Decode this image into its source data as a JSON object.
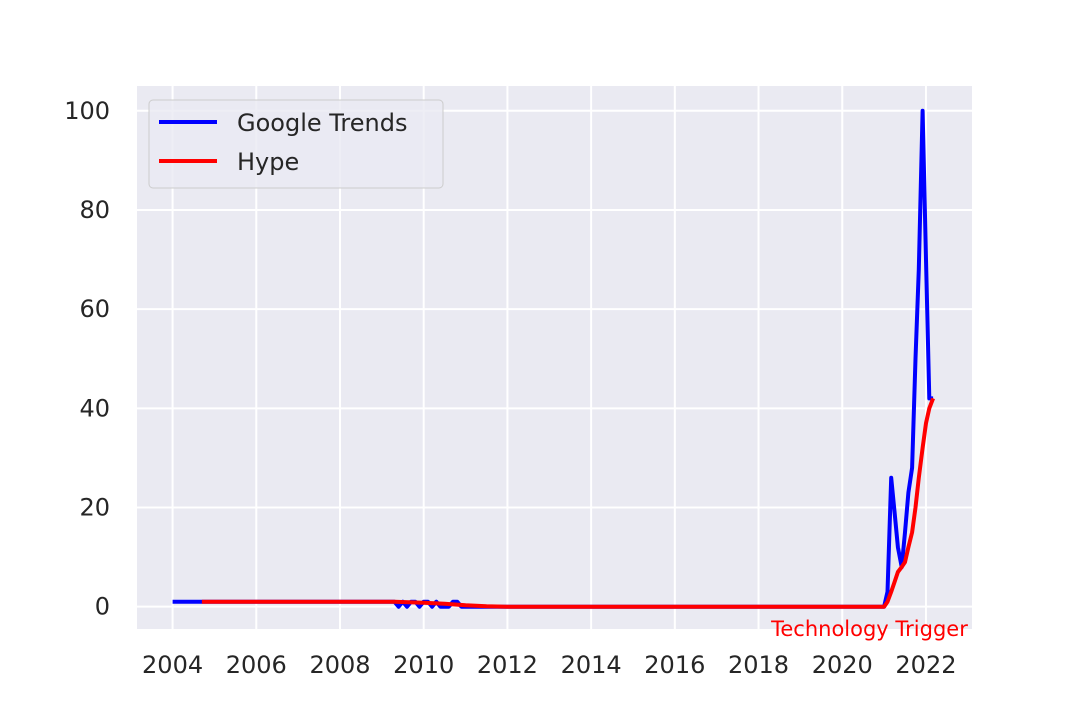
{
  "chart_data": {
    "type": "line",
    "title": "",
    "xlabel": "",
    "ylabel": "",
    "xlim": [
      2003.15,
      2023.1
    ],
    "ylim": [
      -4.5,
      105
    ],
    "grid": true,
    "legend_position": "top-left",
    "x_ticks": [
      2004,
      2006,
      2008,
      2010,
      2012,
      2014,
      2016,
      2018,
      2020,
      2022
    ],
    "y_ticks": [
      0,
      20,
      40,
      60,
      80,
      100
    ],
    "series": [
      {
        "name": "Google Trends",
        "color": "#0000ff",
        "x": [
          2004.0,
          2004.7,
          2009.3,
          2009.4,
          2009.5,
          2009.6,
          2009.7,
          2009.8,
          2009.9,
          2010.0,
          2010.1,
          2010.2,
          2010.3,
          2010.4,
          2010.5,
          2010.6,
          2010.7,
          2010.8,
          2010.9,
          2011.0,
          2012.0,
          2020.9,
          2021.0,
          2021.08,
          2021.17,
          2021.25,
          2021.33,
          2021.42,
          2021.5,
          2021.58,
          2021.67,
          2021.75,
          2021.83,
          2021.92,
          2022.0,
          2022.08,
          2022.17
        ],
        "y": [
          1,
          1,
          1,
          0,
          1,
          0,
          1,
          1,
          0,
          1,
          1,
          0,
          1,
          0,
          0,
          0,
          1,
          1,
          0,
          0,
          0,
          0,
          0,
          3,
          26,
          19,
          12,
          8,
          15,
          23,
          28,
          50,
          68,
          100,
          70,
          42,
          42
        ]
      },
      {
        "name": "Hype",
        "color": "#ff0000",
        "x": [
          2004.7,
          2009.3,
          2010.0,
          2010.5,
          2011.0,
          2011.5,
          2012.0,
          2020.9,
          2021.0,
          2021.08,
          2021.17,
          2021.25,
          2021.33,
          2021.42,
          2021.5,
          2021.58,
          2021.67,
          2021.75,
          2021.83,
          2021.92,
          2022.0,
          2022.08,
          2022.17
        ],
        "y": [
          1,
          1,
          0.8,
          0.6,
          0.3,
          0.1,
          0,
          0,
          0,
          1,
          3,
          5,
          7,
          8,
          9,
          12,
          15,
          20,
          26,
          32,
          37,
          40,
          42
        ]
      }
    ],
    "annotations": [
      {
        "text": "Technology Trigger",
        "x": 2018.3,
        "y": -4.5,
        "color": "#ff0000"
      }
    ]
  }
}
